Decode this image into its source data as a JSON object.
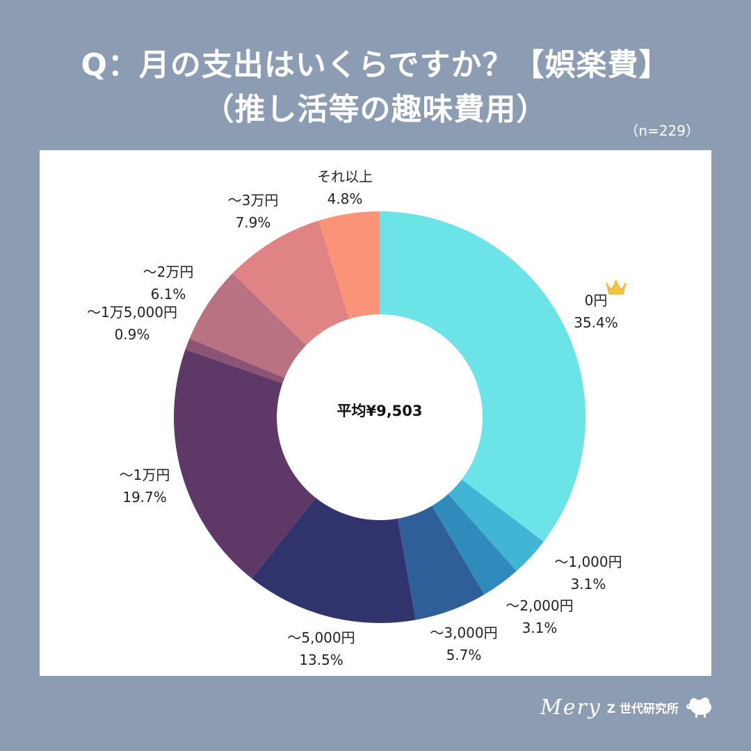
{
  "header": {
    "title_line1": "Q：月の支出はいくらですか？【娯楽費】",
    "title_line2": "（推し活等の趣味費用）",
    "sample_size": "（n=229）"
  },
  "chart_data": {
    "type": "pie",
    "donut": true,
    "center_label": "平均¥9,503",
    "slices": [
      {
        "label": "0円",
        "percent_text": "35.4%",
        "value": 35.4,
        "color": "#6ce3e6"
      },
      {
        "label": "～1,000円",
        "percent_text": "3.1%",
        "value": 3.1,
        "color": "#42b5d4"
      },
      {
        "label": "～2,000円",
        "percent_text": "3.1%",
        "value": 3.1,
        "color": "#2f8bbb"
      },
      {
        "label": "～3,000円",
        "percent_text": "5.7%",
        "value": 5.7,
        "color": "#2e5f99"
      },
      {
        "label": "～5,000円",
        "percent_text": "13.5%",
        "value": 13.5,
        "color": "#31346c"
      },
      {
        "label": "～1万円",
        "percent_text": "19.7%",
        "value": 19.7,
        "color": "#5e3866"
      },
      {
        "label": "～1万5,000円",
        "percent_text": "0.9%",
        "value": 0.9,
        "color": "#8c5374"
      },
      {
        "label": "～2万円",
        "percent_text": "6.1%",
        "value": 6.1,
        "color": "#b87282"
      },
      {
        "label": "～3万円",
        "percent_text": "7.9%",
        "value": 7.9,
        "color": "#e08384"
      },
      {
        "label": "それ以上",
        "percent_text": "4.8%",
        "value": 4.8,
        "color": "#fb9379"
      }
    ],
    "top_slice_icon": "crown-icon",
    "top_slice_icon_color": "#f5c542"
  },
  "footer": {
    "brand": "Mery",
    "lab_name": "Z 世代研究所",
    "mascot_icon": "sheep-icon"
  }
}
